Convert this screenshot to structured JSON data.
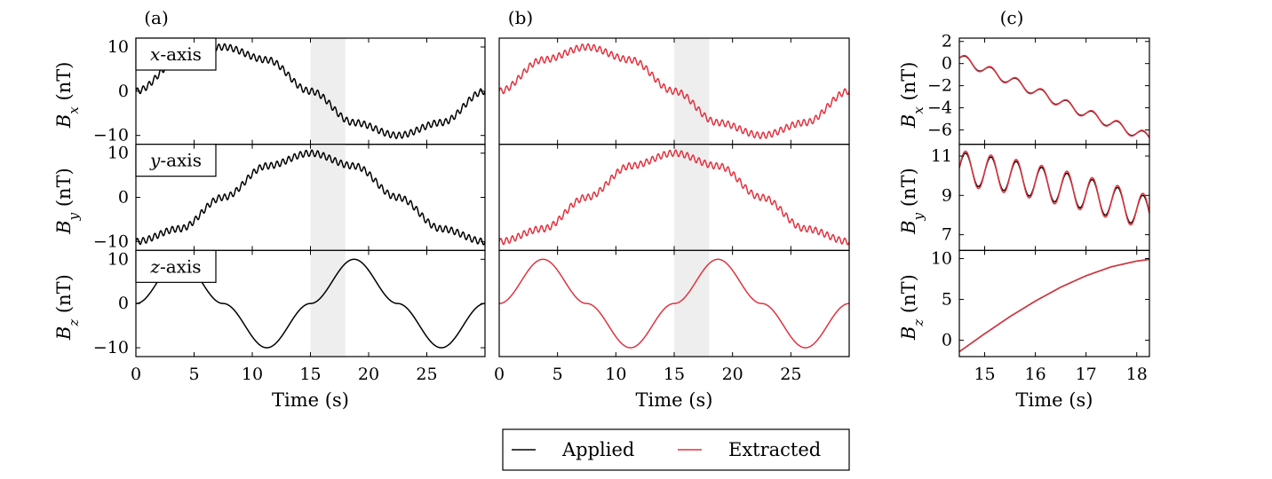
{
  "colors": {
    "applied": "#000000",
    "extracted": "#e0323f",
    "shade": "#eeeeee"
  },
  "legend": {
    "applied_label": "Applied",
    "extracted_label": "Extracted"
  },
  "chart_data": [
    {
      "type": "line",
      "panel_label": "(a)",
      "xlabel": "Time (s)",
      "xlim": [
        0,
        30
      ],
      "xticks": [
        "0",
        "5",
        "10",
        "15",
        "20",
        "25"
      ],
      "shaded_region": [
        15,
        18
      ],
      "rows": [
        {
          "ylabel": "B_x (nT)",
          "axis_name": "x-axis",
          "ylim": [
            -12,
            12
          ],
          "yticks": [
            "10",
            "0",
            "−10"
          ],
          "series": [
            {
              "name": "Applied",
              "x": [
                0,
                3.75,
                7.5,
                11.25,
                15,
                18.75,
                22.5,
                26.25,
                30
              ],
              "y": [
                0,
                7.1,
                10,
                7.1,
                0,
                -7.1,
                -10,
                -7.1,
                0
              ],
              "ripple_amp": 0.7,
              "ripple_period": 0.5
            }
          ]
        },
        {
          "ylabel": "B_y (nT)",
          "axis_name": "y-axis",
          "ylim": [
            -12,
            12
          ],
          "yticks": [
            "10",
            "0",
            "−10"
          ],
          "series": [
            {
              "name": "Applied",
              "x": [
                0,
                3.75,
                7.5,
                11.25,
                15,
                18.75,
                22.5,
                26.25,
                30
              ],
              "y": [
                -10,
                -7.1,
                0,
                7.1,
                10,
                7.1,
                0,
                -7.1,
                -10
              ],
              "ripple_amp": 0.7,
              "ripple_period": 0.5
            }
          ]
        },
        {
          "ylabel": "B_z (nT)",
          "axis_name": "z-axis",
          "ylim": [
            -12,
            12
          ],
          "yticks": [
            "10",
            "0",
            "−10"
          ],
          "series": [
            {
              "name": "Applied",
              "x": [
                0,
                3.75,
                7.5,
                11.25,
                15,
                18.75,
                22.5,
                26.25,
                30
              ],
              "y": [
                0,
                10,
                0,
                -10,
                0,
                10,
                0,
                -10,
                0
              ],
              "ripple_amp": 0,
              "ripple_period": 0.5
            }
          ]
        }
      ]
    },
    {
      "type": "line",
      "panel_label": "(b)",
      "xlabel": "Time (s)",
      "xlim": [
        0,
        30
      ],
      "xticks": [
        "0",
        "5",
        "10",
        "15",
        "20",
        "25"
      ],
      "shaded_region": [
        15,
        18
      ],
      "rows": [
        {
          "ylabel": "",
          "ylim": [
            -12,
            12
          ],
          "series": [
            {
              "name": "Extracted",
              "x": [
                0,
                3.75,
                7.5,
                11.25,
                15,
                18.75,
                22.5,
                26.25,
                30
              ],
              "y": [
                0,
                7.1,
                10,
                7.1,
                0,
                -7.1,
                -10,
                -7.1,
                0
              ],
              "ripple_amp": 0.7,
              "ripple_period": 0.5
            }
          ]
        },
        {
          "ylabel": "",
          "ylim": [
            -12,
            12
          ],
          "series": [
            {
              "name": "Extracted",
              "x": [
                0,
                3.75,
                7.5,
                11.25,
                15,
                18.75,
                22.5,
                26.25,
                30
              ],
              "y": [
                -10,
                -7.1,
                0,
                7.1,
                10,
                7.1,
                0,
                -7.1,
                -10
              ],
              "ripple_amp": 0.7,
              "ripple_period": 0.5
            }
          ]
        },
        {
          "ylabel": "",
          "ylim": [
            -12,
            12
          ],
          "series": [
            {
              "name": "Extracted",
              "x": [
                0,
                3.75,
                7.5,
                11.25,
                15,
                18.75,
                22.5,
                26.25,
                30
              ],
              "y": [
                0,
                10,
                0,
                -10,
                0,
                10,
                0,
                -10,
                0
              ],
              "ripple_amp": 0,
              "ripple_period": 0.5
            }
          ]
        }
      ]
    },
    {
      "type": "line",
      "panel_label": "(c)",
      "xlabel": "Time (s)",
      "xlim": [
        14.5,
        18.25
      ],
      "xticks": [
        "15",
        "16",
        "17",
        "18"
      ],
      "rows": [
        {
          "ylabel": "B_x (nT)",
          "ylim": [
            -7.3,
            2.3
          ],
          "yticks": [
            "2",
            "0",
            "−2",
            "−4",
            "−6"
          ],
          "series": [
            {
              "name": "Applied",
              "x": [
                14.5,
                15,
                15.5,
                16,
                16.5,
                17,
                17.5,
                18,
                18.25
              ],
              "y": [
                0.5,
                -0.5,
                -1.5,
                -2.5,
                -3.5,
                -4.5,
                -5.4,
                -6.3,
                -6.7
              ],
              "ripple_amp": 0.4,
              "ripple_period": 0.5
            },
            {
              "name": "Extracted",
              "x": [
                14.5,
                15,
                15.5,
                16,
                16.5,
                17,
                17.5,
                18,
                18.25
              ],
              "y": [
                0.5,
                -0.5,
                -1.5,
                -2.5,
                -3.5,
                -4.5,
                -5.4,
                -6.3,
                -6.7
              ],
              "ripple_amp": 0.45,
              "ripple_period": 0.5
            }
          ]
        },
        {
          "ylabel": "B_y (nT)",
          "ylim": [
            6.2,
            11.6
          ],
          "yticks": [
            "11",
            "9",
            "7"
          ],
          "series": [
            {
              "name": "Applied",
              "x": [
                14.5,
                15,
                15.5,
                16,
                16.5,
                17,
                17.5,
                18,
                18.25
              ],
              "y": [
                10.4,
                10.2,
                10.0,
                9.7,
                9.4,
                9.1,
                8.7,
                8.3,
                8.1
              ],
              "ripple_amp": 0.8,
              "ripple_period": 0.5
            },
            {
              "name": "Extracted",
              "x": [
                14.5,
                15,
                15.5,
                16,
                16.5,
                17,
                17.5,
                18,
                18.25
              ],
              "y": [
                10.4,
                10.2,
                10.0,
                9.7,
                9.4,
                9.1,
                8.7,
                8.3,
                8.1
              ],
              "ripple_amp": 0.9,
              "ripple_period": 0.5
            }
          ]
        },
        {
          "ylabel": "B_z (nT)",
          "ylim": [
            -2,
            11
          ],
          "yticks": [
            "10",
            "5",
            "0"
          ],
          "series": [
            {
              "name": "Applied",
              "x": [
                14.5,
                15,
                15.5,
                16,
                16.5,
                17,
                17.5,
                18,
                18.25
              ],
              "y": [
                -1.4,
                0.8,
                2.9,
                4.8,
                6.5,
                7.9,
                9.0,
                9.7,
                9.9
              ],
              "ripple_amp": 0,
              "ripple_period": 0.5
            },
            {
              "name": "Extracted",
              "x": [
                14.5,
                15,
                15.5,
                16,
                16.5,
                17,
                17.5,
                18,
                18.25
              ],
              "y": [
                -1.4,
                0.8,
                2.9,
                4.8,
                6.5,
                7.9,
                9.0,
                9.7,
                9.9
              ],
              "ripple_amp": 0,
              "ripple_period": 0.5
            }
          ]
        }
      ]
    }
  ]
}
